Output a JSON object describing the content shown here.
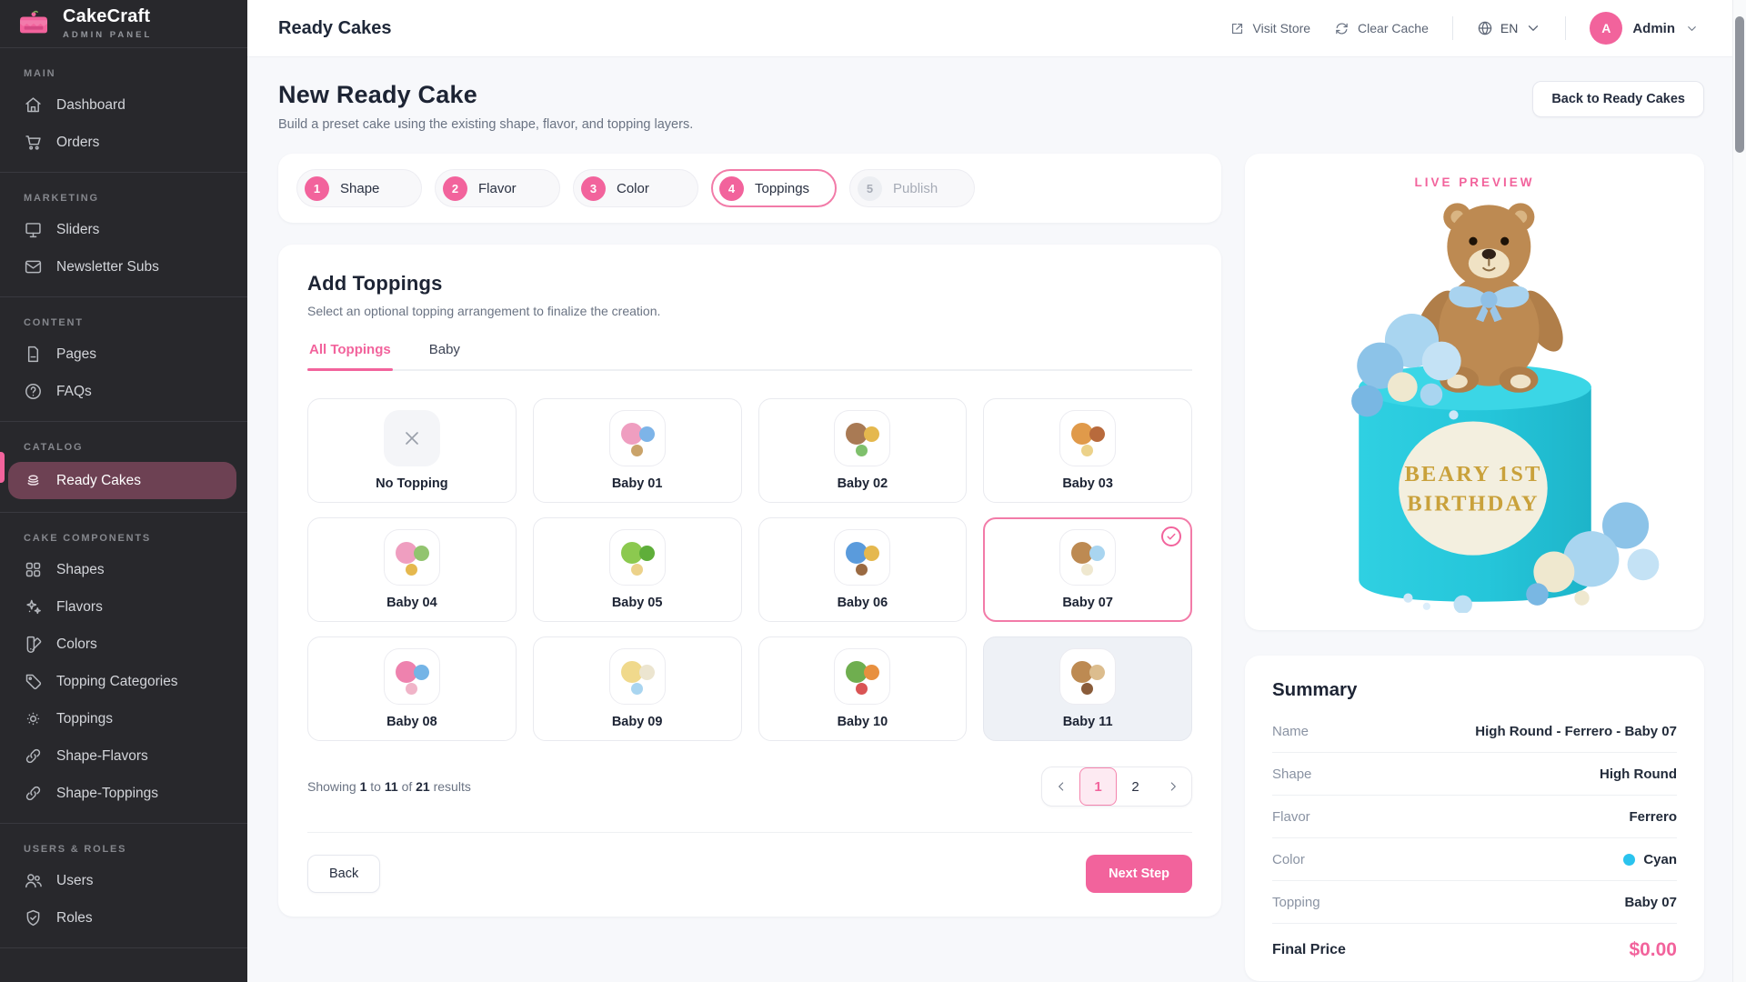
{
  "brand": {
    "name": "CakeCraft",
    "subtitle": "ADMIN PANEL"
  },
  "sidebar": {
    "sections": [
      {
        "label": "MAIN",
        "items": [
          {
            "label": "Dashboard",
            "icon": "home"
          },
          {
            "label": "Orders",
            "icon": "cart"
          }
        ]
      },
      {
        "label": "MARKETING",
        "items": [
          {
            "label": "Sliders",
            "icon": "board"
          },
          {
            "label": "Newsletter Subs",
            "icon": "mail"
          }
        ]
      },
      {
        "label": "CONTENT",
        "items": [
          {
            "label": "Pages",
            "icon": "document"
          },
          {
            "label": "FAQs",
            "icon": "help"
          }
        ]
      },
      {
        "label": "CATALOG",
        "items": [
          {
            "label": "Ready Cakes",
            "icon": "cake",
            "active": true
          }
        ]
      },
      {
        "label": "CAKE COMPONENTS",
        "items": [
          {
            "label": "Shapes",
            "icon": "grid"
          },
          {
            "label": "Flavors",
            "icon": "sparkles"
          },
          {
            "label": "Colors",
            "icon": "swatch"
          },
          {
            "label": "Topping Categories",
            "icon": "tag"
          },
          {
            "label": "Toppings",
            "icon": "sprinkle"
          },
          {
            "label": "Shape-Flavors",
            "icon": "link"
          },
          {
            "label": "Shape-Toppings",
            "icon": "link"
          }
        ]
      },
      {
        "label": "USERS & ROLES",
        "items": [
          {
            "label": "Users",
            "icon": "users"
          },
          {
            "label": "Roles",
            "icon": "shield"
          }
        ]
      }
    ]
  },
  "topbar": {
    "title": "Ready Cakes",
    "visit_store": "Visit Store",
    "clear_cache": "Clear Cache",
    "language": "EN",
    "user_initial": "A",
    "user_name": "Admin"
  },
  "page": {
    "title": "New Ready Cake",
    "subtitle": "Build a preset cake using the existing shape, flavor, and topping layers.",
    "back_button": "Back to Ready Cakes"
  },
  "stepper": {
    "steps": [
      {
        "number": "1",
        "label": "Shape",
        "state": "done"
      },
      {
        "number": "2",
        "label": "Flavor",
        "state": "done"
      },
      {
        "number": "3",
        "label": "Color",
        "state": "done"
      },
      {
        "number": "4",
        "label": "Toppings",
        "state": "active"
      },
      {
        "number": "5",
        "label": "Publish",
        "state": "upcoming"
      }
    ]
  },
  "toppings": {
    "title": "Add Toppings",
    "subtitle": "Select an optional topping arrangement to finalize the creation.",
    "tabs": [
      {
        "label": "All Toppings",
        "active": true
      },
      {
        "label": "Baby",
        "active": false
      }
    ],
    "items": [
      {
        "label": "No Topping",
        "type": "none"
      },
      {
        "label": "Baby 01",
        "dots": [
          "#ef9ec0",
          "#7db4e8",
          "#caa36a"
        ]
      },
      {
        "label": "Baby 02",
        "dots": [
          "#a97a54",
          "#e5b84e",
          "#7fc06c"
        ]
      },
      {
        "label": "Baby 03",
        "dots": [
          "#e09a4a",
          "#b86a3c",
          "#ecd28a"
        ]
      },
      {
        "label": "Baby 04",
        "dots": [
          "#ef9ec0",
          "#92c46f",
          "#e5b84e"
        ]
      },
      {
        "label": "Baby 05",
        "dots": [
          "#8cc94f",
          "#5fae3a",
          "#ecd28a"
        ]
      },
      {
        "label": "Baby 06",
        "dots": [
          "#5a9bdc",
          "#e5b84e",
          "#9a6a42"
        ]
      },
      {
        "label": "Baby 07",
        "dots": [
          "#bd8a52",
          "#a9d5f0",
          "#efe8cf"
        ],
        "selected": true
      },
      {
        "label": "Baby 08",
        "dots": [
          "#ee82ae",
          "#74b4e6",
          "#f0b4c8"
        ]
      },
      {
        "label": "Baby 09",
        "dots": [
          "#f0d98c",
          "#ece5d0",
          "#a9d5f0"
        ]
      },
      {
        "label": "Baby 10",
        "dots": [
          "#6fae4f",
          "#e8903f",
          "#d95454"
        ]
      },
      {
        "label": "Baby 11",
        "dots": [
          "#bd8a52",
          "#dcbd8e",
          "#8a5c3a"
        ],
        "hover": true
      }
    ],
    "results": {
      "prefix": "Showing",
      "from": "1",
      "to_word": "to",
      "to": "11",
      "of_word": "of",
      "total": "21",
      "suffix": "results"
    },
    "pagination": {
      "pages": [
        "1",
        "2"
      ],
      "current": "1"
    },
    "back_button": "Back",
    "next_button": "Next Step"
  },
  "preview": {
    "label": "LIVE PREVIEW",
    "plaque_line1": "BEARY 1ST",
    "plaque_line2": "BIRTHDAY"
  },
  "summary": {
    "title": "Summary",
    "rows": [
      {
        "label": "Name",
        "value": "High Round - Ferrero - Baby 07"
      },
      {
        "label": "Shape",
        "value": "High Round"
      },
      {
        "label": "Flavor",
        "value": "Ferrero"
      },
      {
        "label": "Color",
        "value": "Cyan",
        "swatch": "#2ac3ee"
      },
      {
        "label": "Topping",
        "value": "Baby 07"
      }
    ],
    "final_label": "Final Price",
    "final_value": "$0.00"
  },
  "colors": {
    "accent": "#f2639c",
    "sidebar_active": "#6d4153",
    "cyan": "#2ac3ee",
    "cake_cyan": "#27c9dc"
  }
}
